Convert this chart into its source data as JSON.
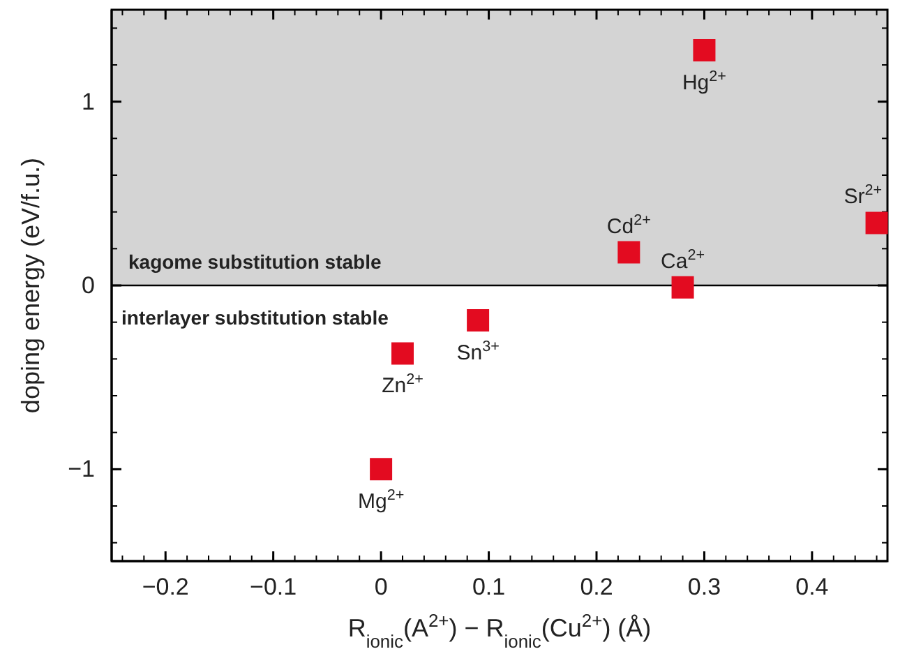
{
  "chart_data": {
    "type": "scatter",
    "xlabel": "R$_{ionic}$(A$^{2+}$) − R$_{ionic}$(Cu$^{2+}$) (Å)",
    "ylabel": "doping energy (eV/f.u.)",
    "marker": "square",
    "grid": false,
    "series": [
      {
        "color": "#e30b20",
        "x": [
          0,
          0.02,
          0.09,
          0.23,
          0.28,
          0.3,
          0.46
        ],
        "values": [
          -1,
          -0.37,
          -0.19,
          0.18,
          -0.01,
          1.28,
          0.34
        ],
        "value_labels": [
          "Mg$^{2+}$",
          "Zn$^{2+}$",
          "Sn$^{3+}$",
          "Cd$^{2+}$",
          "Ca$^{2+}$",
          "Hg$^{2+}$",
          "Sr$^{2+}$"
        ]
      }
    ],
    "xlim": [
      -0.25,
      0.47
    ],
    "ylim": [
      -1.5,
      1.5
    ],
    "xticks": [
      {
        "value": -0.2,
        "label": "−0.2"
      },
      {
        "value": -0.1,
        "label": "−0.1"
      },
      0,
      0.1,
      0.2,
      0.3,
      0.4
    ],
    "yticks": [
      {
        "value": -1,
        "label": "−1"
      },
      0,
      1
    ],
    "bands": [
      {
        "axis": "y",
        "from": 0,
        "to": 1.5,
        "label": "kagome substitution stable",
        "color": "#d4d4d4"
      }
    ],
    "ref_lines": [
      {
        "axis": "y",
        "value": 0,
        "label": "interlayer substitution stable",
        "color": "#000000"
      }
    ]
  }
}
